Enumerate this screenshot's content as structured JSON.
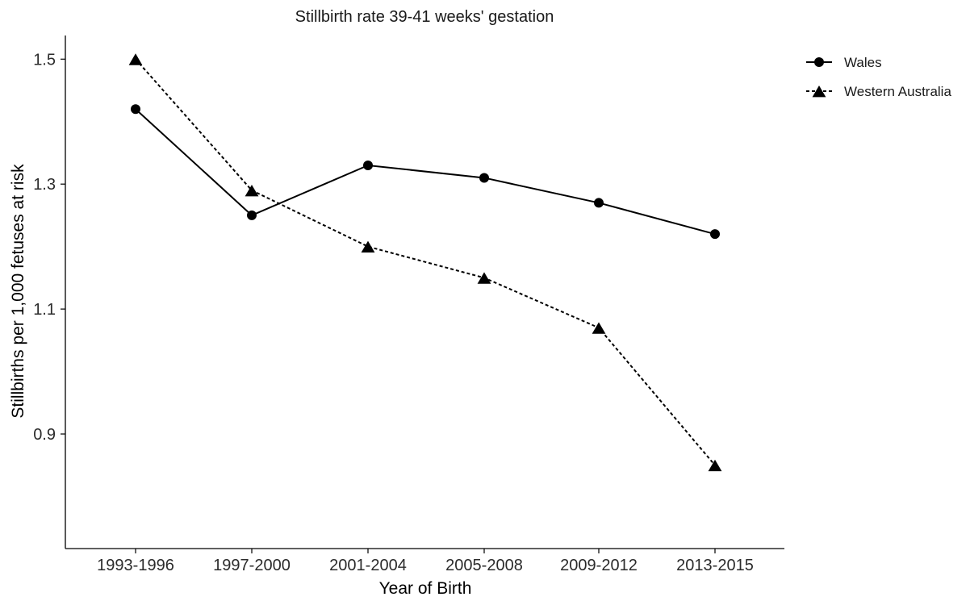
{
  "chart_data": {
    "type": "line",
    "title": "Stillbirth rate 39-41 weeks' gestation",
    "xlabel": "Year of Birth",
    "ylabel": "Stillbirths per 1,000 fetuses at risk",
    "categories": [
      "1993-1996",
      "1997-2000",
      "2001-2004",
      "2005-2008",
      "2009-2012",
      "2013-2015"
    ],
    "ylim": [
      0.74,
      1.55
    ],
    "yticks": [
      "0.9",
      "1.1",
      "1.3",
      "1.5"
    ],
    "grid": false,
    "legend_position": "top-right",
    "series": [
      {
        "name": "Wales",
        "marker": "circle",
        "line_style": "solid",
        "color": "#000000",
        "values": [
          1.42,
          1.25,
          1.33,
          1.31,
          1.27,
          1.22
        ]
      },
      {
        "name": "Western Australia",
        "marker": "triangle",
        "line_style": "dashed",
        "color": "#000000",
        "values": [
          1.5,
          1.29,
          1.2,
          1.15,
          1.07,
          0.85
        ]
      }
    ]
  }
}
